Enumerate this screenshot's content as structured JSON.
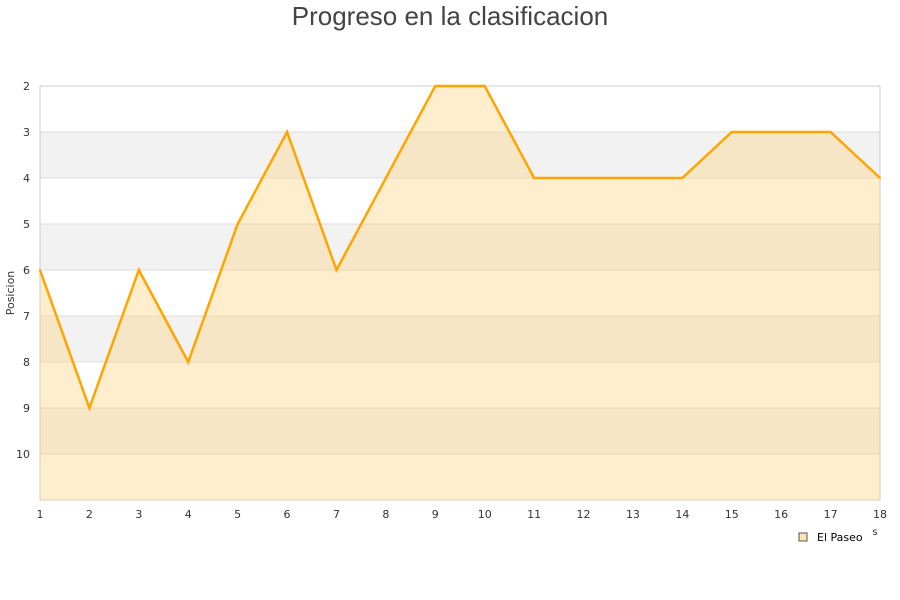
{
  "chart_data": {
    "type": "area",
    "title": "Progreso en la clasificacion",
    "ylabel": "Posicion",
    "xlabel_fragment": "s",
    "x": [
      1,
      2,
      3,
      4,
      5,
      6,
      7,
      8,
      9,
      10,
      11,
      12,
      13,
      14,
      15,
      16,
      17,
      18
    ],
    "series": [
      {
        "name": "El Paseo",
        "values": [
          6,
          9,
          6,
          8,
          5,
          3,
          6,
          4,
          2,
          2,
          4,
          4,
          4,
          4,
          3,
          3,
          3,
          4
        ]
      }
    ],
    "ylim": [
      11,
      2
    ],
    "y_inverted": true,
    "yticks": [
      2,
      3,
      4,
      5,
      6,
      7,
      8,
      9,
      10
    ],
    "grid": true,
    "legend": "bottom-right",
    "colors": {
      "line": "#FFA500",
      "fill": "#FFD27F",
      "band": "#F2F2F2"
    }
  }
}
